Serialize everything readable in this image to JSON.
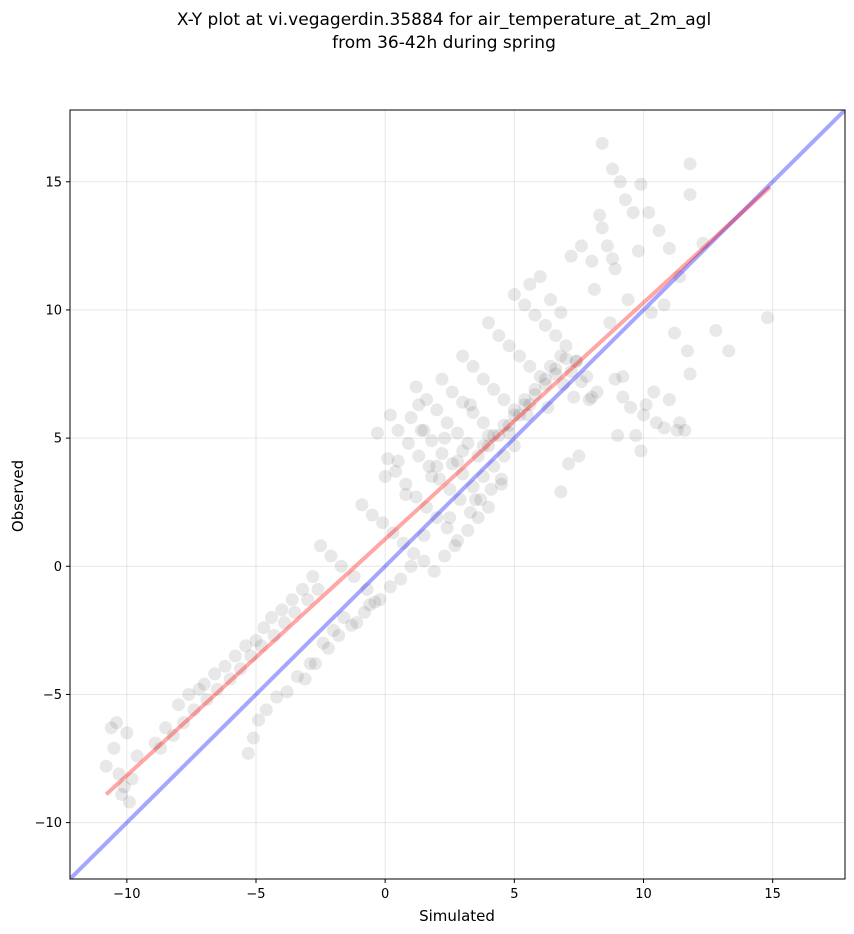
{
  "chart_data": {
    "type": "scatter",
    "title_line1": "X-Y plot at vi.vegagerdin.35884 for air_temperature_at_2m_agl",
    "title_line2": "from 36-42h during spring",
    "xlabel": "Simulated",
    "ylabel": "Observed",
    "xlim": [
      -12.2,
      17.8
    ],
    "ylim": [
      -12.2,
      17.8
    ],
    "xticks": [
      -10,
      -5,
      0,
      5,
      10,
      15
    ],
    "yticks": [
      -10,
      -5,
      0,
      5,
      10,
      15
    ],
    "xtick_labels": [
      "−10",
      "−5",
      "0",
      "5",
      "10",
      "15"
    ],
    "ytick_labels": [
      "−10",
      "−5",
      "0",
      "5",
      "10",
      "15"
    ],
    "grid": true,
    "point_color": "#000000",
    "point_alpha": 0.09,
    "identity_line": {
      "color": "#0000ff",
      "alpha": 0.35,
      "x": [
        -12.2,
        17.8
      ],
      "y": [
        -12.2,
        17.8
      ]
    },
    "fit_line": {
      "color": "#ff0000",
      "alpha": 0.35,
      "x": [
        -10.8,
        14.9
      ],
      "y": [
        -8.9,
        14.8
      ]
    },
    "series": [
      {
        "x": [
          -10.8,
          -10.6,
          -10.5,
          -10.3,
          -10.1,
          -9.9,
          -10.0,
          -9.6,
          -10.4,
          -10.2,
          -9.8,
          -8.9,
          -8.5,
          -8.0,
          -7.6,
          -7.2,
          -7.0,
          -6.6,
          -6.2,
          -5.8,
          -5.4,
          -5.0,
          -4.7,
          -4.4,
          -4.0,
          -3.6,
          -3.2,
          -2.8,
          -8.7,
          -8.2,
          -7.8,
          -7.4,
          -6.9,
          -6.5,
          -6.0,
          -5.6,
          -5.2,
          -4.8,
          -4.3,
          -3.9,
          -3.5,
          -3.0,
          -2.6,
          -5.3,
          -5.1,
          -4.9,
          -4.6,
          -4.2,
          -3.1,
          -2.9,
          -2.4,
          -2.0,
          -1.6,
          -3.8,
          -3.4,
          -2.7,
          -2.2,
          -1.8,
          -1.3,
          -0.8,
          -0.4,
          -1.1,
          -0.6,
          -2.5,
          -2.1,
          -1.7,
          -1.2,
          -0.7,
          -0.2,
          0.2,
          0.6,
          1.0,
          -0.9,
          -0.5,
          -0.1,
          0.3,
          0.7,
          1.1,
          1.5,
          1.9,
          2.3,
          2.7,
          0.1,
          0.4,
          0.8,
          1.2,
          1.6,
          2.0,
          2.4,
          2.8,
          3.2,
          3.6,
          4.0,
          0.5,
          0.9,
          1.3,
          1.7,
          2.1,
          2.5,
          2.9,
          3.3,
          3.7,
          4.1,
          4.5,
          1.0,
          1.4,
          1.8,
          2.2,
          2.6,
          3.0,
          3.4,
          3.8,
          4.2,
          4.6,
          5.0,
          1.2,
          1.6,
          2.0,
          2.4,
          2.8,
          3.2,
          3.6,
          4.0,
          4.4,
          4.8,
          5.2,
          5.6,
          2.2,
          2.6,
          3.0,
          3.4,
          3.8,
          4.2,
          4.6,
          5.0,
          5.4,
          5.8,
          6.2,
          6.6,
          3.0,
          3.4,
          3.8,
          4.2,
          4.6,
          5.0,
          5.4,
          5.8,
          6.2,
          6.6,
          7.0,
          7.4,
          4.0,
          4.4,
          4.8,
          5.2,
          5.6,
          6.0,
          6.4,
          6.8,
          7.2,
          7.6,
          8.0,
          5.0,
          5.4,
          5.8,
          6.2,
          6.6,
          7.0,
          7.4,
          7.8,
          8.2,
          5.6,
          6.0,
          6.4,
          6.8,
          7.2,
          7.6,
          8.0,
          8.4,
          8.8,
          1.5,
          2.5,
          3.5,
          4.5,
          2.0,
          3.0,
          4.0,
          0.8,
          1.8,
          2.8,
          3.8,
          4.8,
          5.5,
          0.0,
          0.5,
          1.5,
          -0.3,
          0.2,
          1.3,
          2.3,
          3.3,
          6.3,
          7.3,
          6.9,
          8.3,
          8.6,
          8.8,
          9.1,
          9.3,
          9.6,
          9.9,
          10.2,
          10.6,
          11.0,
          11.4,
          11.8,
          12.3,
          12.8,
          13.3,
          14.8,
          8.4,
          8.9,
          9.4,
          9.8,
          10.3,
          10.8,
          11.2,
          11.7,
          8.1,
          8.7,
          9.2,
          9.7,
          10.1,
          10.5,
          11.6,
          9.0,
          9.5,
          10.0,
          11.8,
          11.8,
          9.2,
          8.9,
          10.4,
          7.5,
          7.1,
          7.9,
          6.8,
          9.9,
          10.8,
          11.4,
          11.3,
          11.0
        ],
        "y": [
          -7.8,
          -6.3,
          -7.1,
          -8.1,
          -8.6,
          -9.2,
          -6.5,
          -7.4,
          -6.1,
          -8.9,
          -8.3,
          -6.9,
          -6.3,
          -5.4,
          -5.0,
          -4.8,
          -4.6,
          -4.2,
          -3.9,
          -3.5,
          -3.1,
          -2.9,
          -2.4,
          -2.0,
          -1.7,
          -1.3,
          -0.9,
          -0.4,
          -7.1,
          -6.6,
          -6.1,
          -5.6,
          -5.2,
          -4.8,
          -4.4,
          -4.0,
          -3.5,
          -3.1,
          -2.7,
          -2.2,
          -1.8,
          -1.3,
          -0.9,
          -7.3,
          -6.7,
          -6.0,
          -5.6,
          -5.1,
          -4.4,
          -3.8,
          -3.0,
          -2.5,
          -2.0,
          -4.9,
          -4.3,
          -3.8,
          -3.2,
          -2.7,
          -2.3,
          -1.8,
          -1.4,
          -2.2,
          -1.5,
          0.8,
          0.4,
          0.0,
          -0.4,
          -0.9,
          -1.3,
          -0.8,
          -0.5,
          0.0,
          2.4,
          2.0,
          1.7,
          1.3,
          0.9,
          0.5,
          0.2,
          -0.2,
          0.4,
          0.8,
          4.2,
          3.7,
          3.2,
          2.7,
          2.3,
          1.9,
          1.5,
          1.0,
          1.4,
          1.9,
          2.3,
          5.3,
          4.8,
          4.3,
          3.9,
          3.4,
          3.0,
          2.6,
          2.1,
          2.6,
          3.0,
          3.4,
          5.8,
          5.3,
          4.9,
          4.4,
          4.0,
          3.6,
          3.1,
          3.5,
          3.9,
          4.3,
          4.7,
          7.0,
          6.5,
          6.1,
          5.6,
          5.2,
          4.8,
          4.3,
          4.7,
          5.1,
          5.5,
          5.9,
          6.3,
          7.3,
          6.8,
          6.4,
          6.0,
          5.6,
          5.1,
          5.5,
          5.9,
          6.3,
          6.7,
          7.1,
          7.5,
          8.2,
          7.8,
          7.3,
          6.9,
          6.5,
          6.1,
          6.5,
          6.9,
          7.3,
          7.7,
          8.1,
          8.0,
          9.5,
          9.0,
          8.6,
          8.2,
          7.8,
          7.4,
          7.8,
          8.2,
          7.6,
          7.2,
          6.6,
          10.6,
          10.2,
          9.8,
          9.4,
          9.0,
          8.6,
          8.0,
          7.4,
          6.8,
          11.0,
          11.3,
          10.4,
          9.9,
          12.1,
          12.5,
          11.9,
          13.2,
          12.0,
          1.2,
          1.9,
          2.6,
          3.2,
          3.9,
          4.5,
          5.1,
          2.8,
          3.5,
          4.1,
          4.7,
          5.2,
          5.9,
          3.5,
          4.1,
          5.3,
          5.2,
          5.9,
          6.3,
          5.0,
          6.3,
          6.2,
          6.6,
          7.1,
          13.7,
          12.5,
          15.5,
          15.0,
          14.3,
          13.8,
          14.9,
          13.8,
          13.1,
          12.4,
          11.3,
          14.5,
          12.6,
          9.2,
          8.4,
          9.7,
          16.5,
          11.6,
          10.4,
          12.3,
          9.9,
          10.2,
          9.1,
          8.4,
          10.8,
          9.5,
          6.6,
          5.1,
          6.3,
          5.6,
          5.3,
          5.1,
          6.2,
          5.9,
          15.7,
          7.5,
          7.4,
          7.3,
          6.8,
          4.3,
          4.0,
          6.5,
          2.9,
          4.5,
          5.4,
          5.6,
          5.3,
          6.5
        ]
      }
    ]
  }
}
